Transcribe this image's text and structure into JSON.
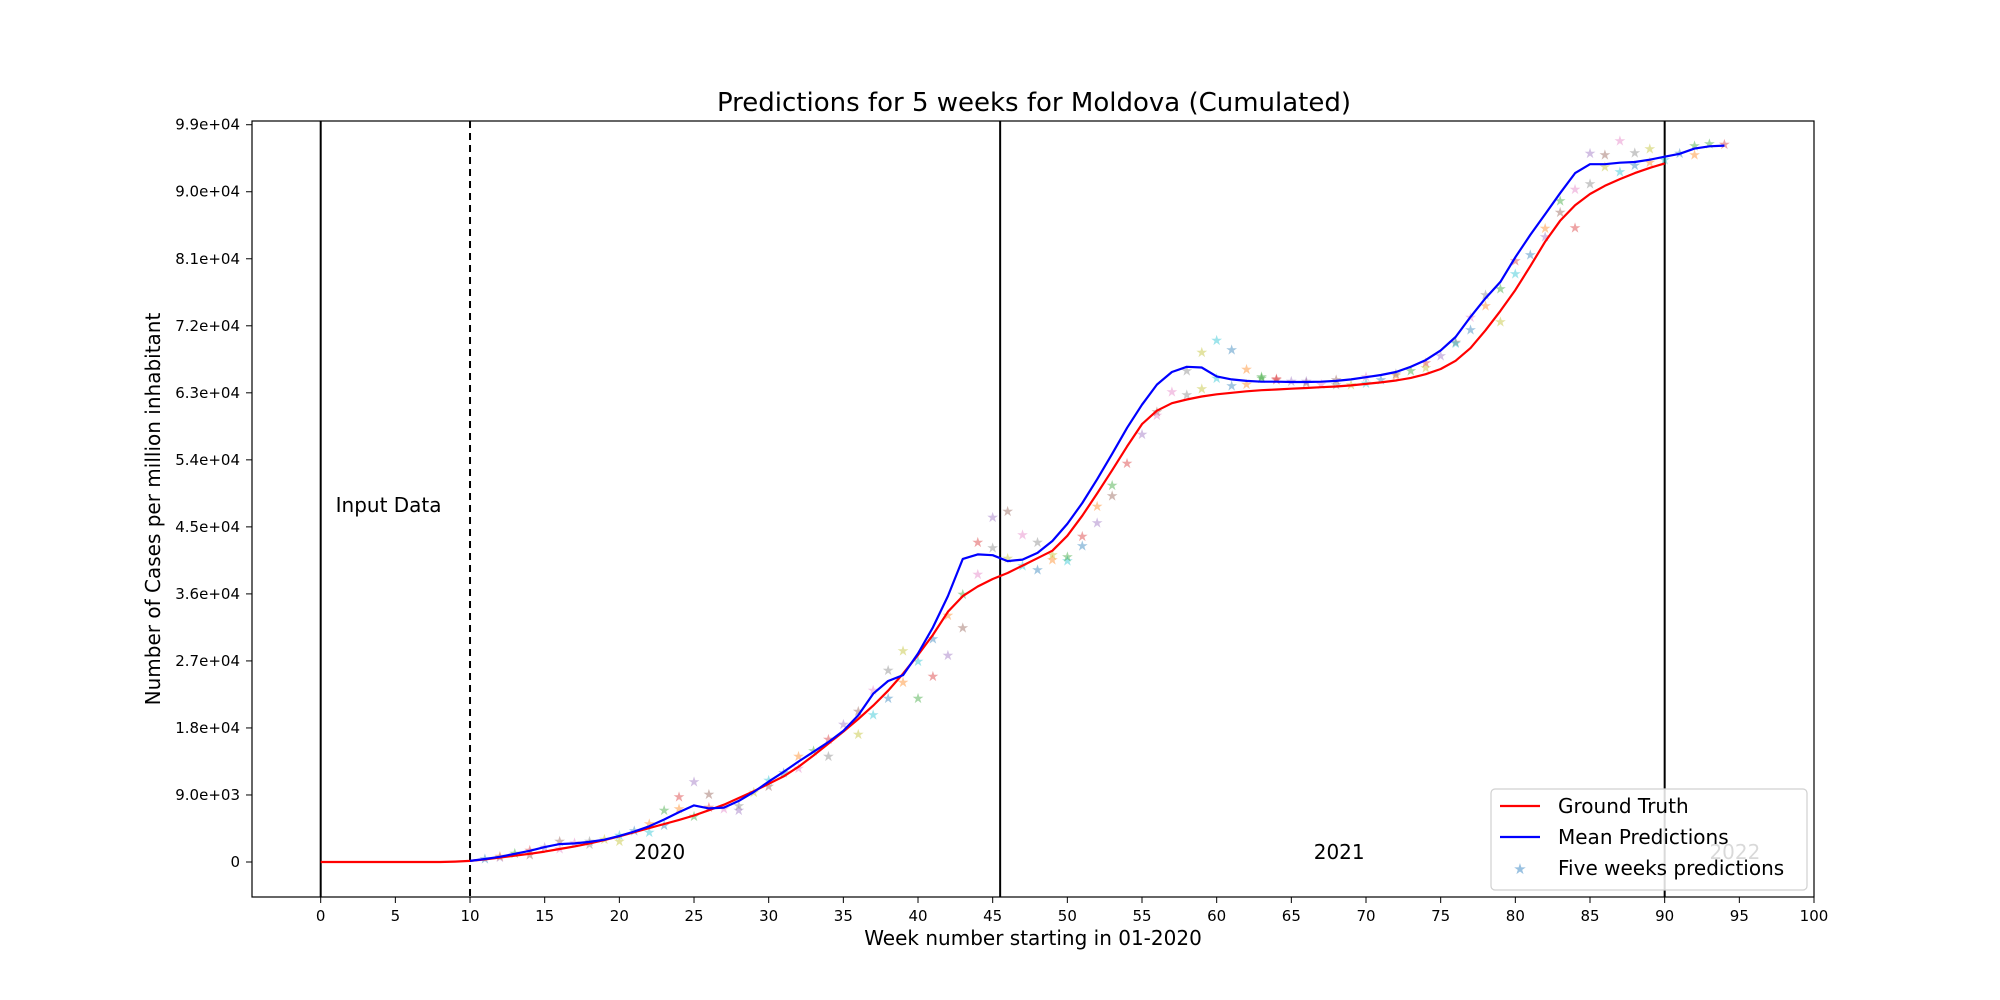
{
  "chart_data": {
    "type": "line",
    "title": "Predictions for 5 weeks for Moldova (Cumulated)",
    "xlabel": "Week number starting in 01-2020",
    "ylabel": "Number of Cases per million inhabitant",
    "xlim": [
      -4.6,
      100
    ],
    "ylim": [
      -4700,
      99500
    ],
    "xticks": [
      0,
      5,
      10,
      15,
      20,
      25,
      30,
      35,
      40,
      45,
      50,
      55,
      60,
      65,
      70,
      75,
      80,
      85,
      90,
      95,
      100
    ],
    "xtick_labels": [
      "0",
      "5",
      "10",
      "15",
      "20",
      "25",
      "30",
      "35",
      "40",
      "45",
      "50",
      "55",
      "60",
      "65",
      "70",
      "75",
      "80",
      "85",
      "90",
      "95",
      "100"
    ],
    "yticks": [
      0,
      9000,
      18000,
      27000,
      36000,
      45000,
      54000,
      63000,
      72000,
      81000,
      90000,
      99000
    ],
    "ytick_labels": [
      "0",
      "9.0e+03",
      "1.8e+04",
      "2.7e+04",
      "3.6e+04",
      "4.5e+04",
      "5.4e+04",
      "6.3e+04",
      "7.2e+04",
      "8.1e+04",
      "9.0e+04",
      "9.9e+04"
    ],
    "grid": false,
    "legend_position": "lower-right",
    "vlines": [
      {
        "x": 0,
        "style": "solid"
      },
      {
        "x": 10,
        "style": "dashed"
      },
      {
        "x": 45.5,
        "style": "solid"
      },
      {
        "x": 90,
        "style": "solid"
      }
    ],
    "annotations": [
      {
        "text": "Input Data",
        "x": 1,
        "y": 47000
      },
      {
        "text": "2020",
        "x": 21,
        "y": 400
      },
      {
        "text": "2021",
        "x": 66.5,
        "y": 400
      },
      {
        "text": "2022",
        "x": 93,
        "y": 400,
        "color": "#c8c8c8"
      }
    ],
    "series": [
      {
        "name": "Ground Truth",
        "color": "#ff0000",
        "kind": "line",
        "x": [
          0,
          1,
          2,
          3,
          4,
          5,
          6,
          7,
          8,
          9,
          10,
          11,
          12,
          13,
          14,
          15,
          16,
          17,
          18,
          19,
          20,
          21,
          22,
          23,
          24,
          25,
          26,
          27,
          28,
          29,
          30,
          31,
          32,
          33,
          34,
          35,
          36,
          37,
          38,
          39,
          40,
          41,
          42,
          43,
          44,
          45,
          46,
          47,
          48,
          49,
          50,
          51,
          52,
          53,
          54,
          55,
          56,
          57,
          58,
          59,
          60,
          61,
          62,
          63,
          64,
          65,
          66,
          67,
          68,
          69,
          70,
          71,
          72,
          73,
          74,
          75,
          76,
          77,
          78,
          79,
          80,
          81,
          82,
          83,
          84,
          85,
          86,
          87,
          88,
          89,
          90
        ],
        "y": [
          0,
          0,
          0,
          0,
          0,
          0,
          0,
          0,
          0,
          50,
          150,
          350,
          600,
          850,
          1100,
          1400,
          1750,
          2100,
          2500,
          2950,
          3450,
          4000,
          4550,
          5100,
          5650,
          6250,
          6950,
          7700,
          8600,
          9500,
          10500,
          11500,
          12800,
          14300,
          15900,
          17500,
          19200,
          21000,
          23000,
          25300,
          27800,
          30500,
          33600,
          35700,
          37000,
          38000,
          38800,
          39800,
          40800,
          41800,
          43800,
          46500,
          49500,
          52600,
          55800,
          58800,
          60600,
          61600,
          62100,
          62500,
          62800,
          63000,
          63200,
          63350,
          63450,
          63550,
          63650,
          63750,
          63850,
          64000,
          64200,
          64400,
          64650,
          65000,
          65500,
          66200,
          67300,
          69000,
          71400,
          74000,
          76800,
          80000,
          83300,
          86100,
          88200,
          89700,
          90800,
          91700,
          92500,
          93200,
          93800
        ]
      },
      {
        "name": "Mean Predictions",
        "color": "#0000ff",
        "kind": "line",
        "x": [
          10,
          11,
          12,
          13,
          14,
          15,
          16,
          17,
          18,
          19,
          20,
          21,
          22,
          23,
          24,
          25,
          26,
          27,
          28,
          29,
          30,
          31,
          32,
          33,
          34,
          35,
          36,
          37,
          38,
          39,
          40,
          41,
          42,
          43,
          44,
          45,
          46,
          47,
          48,
          49,
          50,
          51,
          52,
          53,
          54,
          55,
          56,
          57,
          58,
          59,
          60,
          61,
          62,
          63,
          64,
          65,
          66,
          67,
          68,
          69,
          70,
          71,
          72,
          73,
          74,
          75,
          76,
          77,
          78,
          79,
          80,
          81,
          82,
          83,
          84,
          85,
          86,
          87,
          88,
          89,
          90,
          91,
          92,
          93,
          94
        ],
        "y": [
          150,
          400,
          700,
          1100,
          1500,
          2000,
          2400,
          2500,
          2700,
          3000,
          3500,
          4100,
          4800,
          5700,
          6700,
          7600,
          7200,
          7300,
          8200,
          9400,
          10800,
          12100,
          13500,
          14800,
          16100,
          17600,
          19700,
          22600,
          24300,
          25100,
          28000,
          31500,
          35700,
          40700,
          41300,
          41200,
          40400,
          40600,
          41500,
          43100,
          45400,
          48200,
          51400,
          54800,
          58300,
          61400,
          64100,
          65800,
          66500,
          66400,
          65200,
          64800,
          64600,
          64500,
          64500,
          64450,
          64450,
          64500,
          64600,
          64800,
          65100,
          65400,
          65800,
          66500,
          67400,
          68700,
          70500,
          73200,
          75700,
          77900,
          81200,
          84200,
          87000,
          89800,
          92500,
          93700,
          93700,
          93900,
          94000,
          94300,
          94700,
          95100,
          95800,
          96100,
          96200
        ]
      },
      {
        "name": "Five weeks predictions",
        "kind": "scatter",
        "marker": "star",
        "color": "#7fb2d9",
        "point_colors": [
          "#1f77b4",
          "#ff7f0e",
          "#2ca02c",
          "#d62728",
          "#9467bd",
          "#8c564b",
          "#e377c2",
          "#7f7f7f",
          "#bcbd22",
          "#17becf"
        ],
        "x": [
          11,
          12,
          13,
          14,
          15,
          16,
          17,
          18,
          19,
          20,
          21,
          22,
          23,
          24,
          25,
          26,
          27,
          28,
          29,
          30,
          31,
          32,
          33,
          34,
          35,
          36,
          37,
          38,
          39,
          40,
          41,
          42,
          43,
          44,
          45,
          46,
          47,
          48,
          49,
          50,
          51,
          52,
          53,
          54,
          55,
          56,
          57,
          58,
          59,
          60,
          61,
          62,
          63,
          64,
          65,
          66,
          67,
          68,
          69,
          70,
          71,
          72,
          73,
          74,
          75,
          76,
          77,
          78,
          79,
          80,
          81,
          82,
          83,
          84,
          85,
          86,
          87,
          88,
          89,
          90,
          91,
          92,
          93,
          94,
          12,
          14,
          16,
          18,
          20,
          22,
          23,
          24,
          25,
          26,
          28,
          30,
          32,
          34,
          36,
          37,
          38,
          39,
          40,
          41,
          42,
          43,
          44,
          45,
          46,
          47,
          48,
          49,
          50,
          51,
          52,
          53,
          56,
          58,
          59,
          60,
          61,
          62,
          63,
          64,
          66,
          68,
          70,
          72,
          74,
          76,
          77,
          78,
          79,
          80,
          82,
          83,
          84,
          85,
          86,
          87,
          88,
          89,
          92
        ],
        "y": [
          500,
          800,
          1200,
          1600,
          2000,
          2800,
          2600,
          2800,
          3100,
          3600,
          4200,
          5200,
          7000,
          8800,
          10800,
          9100,
          7200,
          7600,
          9400,
          11000,
          12000,
          14200,
          15000,
          16500,
          18500,
          20300,
          23100,
          25800,
          28400,
          27000,
          30000,
          33200,
          36000,
          43000,
          46300,
          47100,
          44000,
          43000,
          41300,
          40500,
          42500,
          47800,
          50600,
          53600,
          57500,
          60500,
          63200,
          66000,
          68500,
          70100,
          68800,
          66200,
          65000,
          64800,
          64600,
          64400,
          64200,
          64100,
          64100,
          64300,
          64800,
          65400,
          66000,
          67100,
          68000,
          69800,
          73200,
          76200,
          72600,
          79000,
          81600,
          85100,
          88800,
          85200,
          95200,
          95000,
          96900,
          95300,
          95800,
          94300,
          95200,
          95000,
          96500,
          96400,
          700,
          1000,
          1800,
          2400,
          2800,
          4000,
          5000,
          7200,
          6200,
          7400,
          7000,
          10200,
          12600,
          14200,
          17200,
          19800,
          22000,
          24200,
          22000,
          25000,
          27800,
          31500,
          38700,
          42200,
          40800,
          39800,
          39300,
          40600,
          41000,
          43800,
          45600,
          49200,
          60000,
          62800,
          63600,
          65000,
          64000,
          64200,
          65200,
          64900,
          64600,
          64800,
          65200,
          65600,
          66400,
          69700,
          71500,
          74700,
          77000,
          80800,
          84000,
          87300,
          90400,
          91100,
          93400,
          92700,
          93600,
          94000,
          96200
        ]
      }
    ]
  }
}
